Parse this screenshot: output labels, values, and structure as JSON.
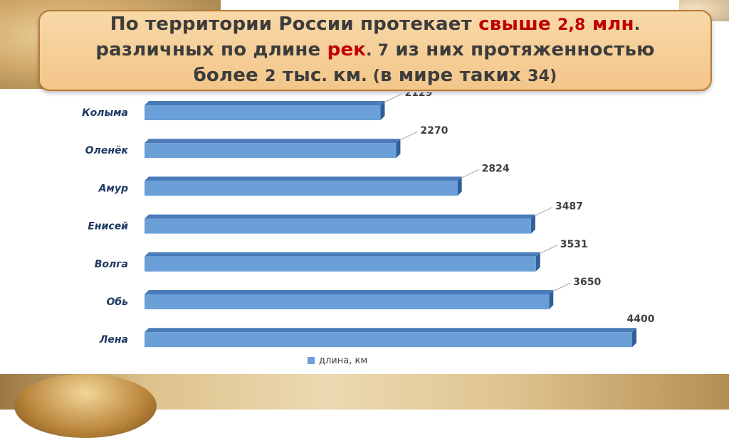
{
  "title": {
    "line1_part1": "По территории России протекает ",
    "line1_red": "свыше ",
    "line1_num": "2,8",
    "line1_red2": " млн",
    "line1_dot": ".",
    "line2_part1": "различных по длине ",
    "line2_red": "рек",
    "line2_dot": ". ",
    "line2_num": "7",
    "line2_part2": " из них протяженностью",
    "line3_part1": "более ",
    "line3_num": "2",
    "line3_part2": " тыс",
    "line3_dot": ". ",
    "line3_part3": "км",
    "line3_dot2": ". ",
    "line3_paren": "(",
    "line3_part4": "в мире таких ",
    "line3_num2": "34",
    "line3_paren2": ")"
  },
  "colors": {
    "bar_front": "#6a9fd8",
    "bar_top": "#4a7bb8",
    "bar_side": "#2f5f97",
    "title_red": "#c00000",
    "title_bg": "#f5cc92"
  },
  "chart_data": {
    "type": "bar",
    "orientation": "horizontal",
    "categories": [
      "Колыма",
      "Оленёк",
      "Амур",
      "Енисей",
      "Волга",
      "Обь",
      "Лена"
    ],
    "series": [
      {
        "name": "длина, км",
        "values": [
          2129,
          2270,
          2824,
          3487,
          3531,
          3650,
          4400
        ]
      }
    ],
    "xlim": [
      0,
      4400
    ],
    "legend": {
      "placement": "bottom",
      "entries": [
        "длина, км"
      ]
    },
    "grid": false
  }
}
